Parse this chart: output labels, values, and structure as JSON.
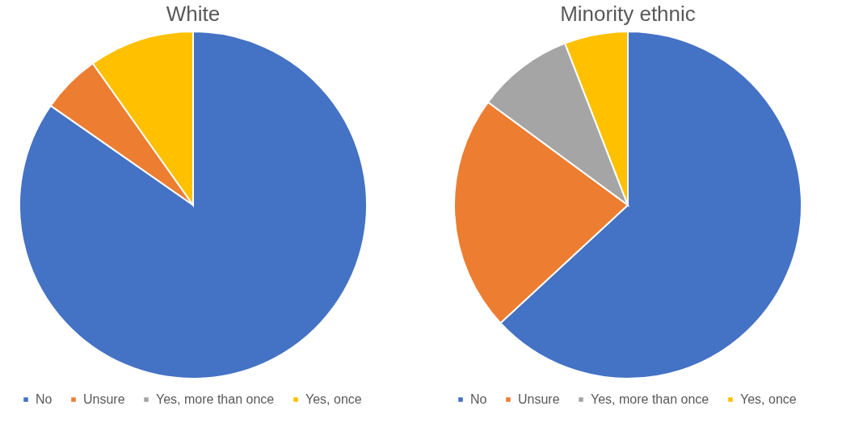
{
  "chart_data": [
    {
      "type": "pie",
      "title": "White",
      "categories": [
        "No",
        "Unsure",
        "Yes, more than once",
        "Yes, once"
      ],
      "values": [
        84.7,
        5.5,
        null,
        9.8
      ],
      "colors": [
        "#4472c4",
        "#ed7d31",
        "#a5a5a5",
        "#ffc000"
      ],
      "legend": "bottom"
    },
    {
      "type": "pie",
      "title": "Minority ethnic",
      "categories": [
        "No",
        "Unsure",
        "Yes, more than once",
        "Yes, once"
      ],
      "values": [
        63.1,
        22.0,
        9.0,
        5.9
      ],
      "colors": [
        "#4472c4",
        "#ed7d31",
        "#a5a5a5",
        "#ffc000"
      ],
      "legend": "bottom"
    }
  ]
}
